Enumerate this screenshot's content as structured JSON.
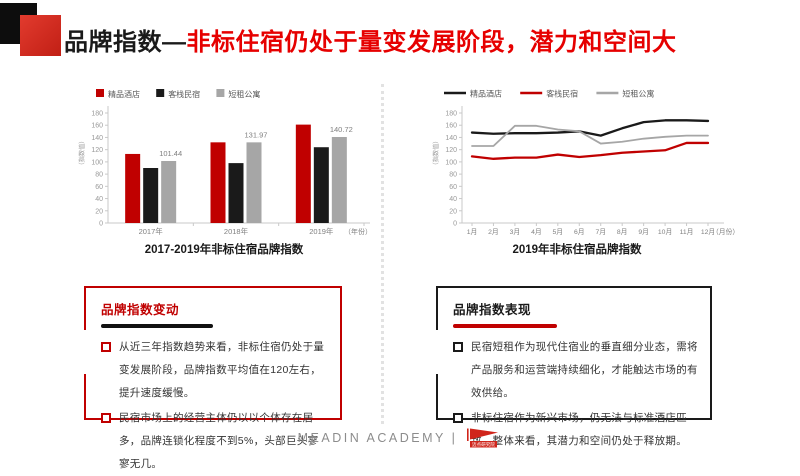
{
  "header": {
    "title_black": "品牌指数—",
    "title_red": "非标住宿仍处于量变发展阶段，潜力和空间大"
  },
  "colors": {
    "accent_red": "#c00000",
    "title_red": "#e60000",
    "series_black": "#1a1a1a",
    "series_gray": "#a6a6a6"
  },
  "chart_data": [
    {
      "type": "bar",
      "title": "2017-2019年非标住宿品牌指数",
      "ylabel": "（指数值）",
      "xlabel": "（年份）",
      "categories": [
        "2017年",
        "2018年",
        "2019年"
      ],
      "series": [
        {
          "name": "精品酒店",
          "color": "#c00000",
          "values": [
            113,
            132,
            161
          ]
        },
        {
          "name": "客栈民宿",
          "color": "#1a1a1a",
          "values": [
            90,
            98,
            124
          ]
        },
        {
          "name": "短租公寓",
          "color": "#a6a6a6",
          "values": [
            101.44,
            131.97,
            140.72
          ],
          "labels": [
            "101.44",
            "131.97",
            "140.72"
          ]
        }
      ],
      "ylim": [
        0,
        180
      ],
      "ytick_step": 20,
      "legend_position": "top",
      "grid": false
    },
    {
      "type": "line",
      "title": "2019年非标住宿品牌指数",
      "ylabel": "（指数值）",
      "xlabel": "（月份）",
      "categories": [
        "1月",
        "2月",
        "3月",
        "4月",
        "5月",
        "6月",
        "7月",
        "8月",
        "9月",
        "10月",
        "11月",
        "12月"
      ],
      "series": [
        {
          "name": "精品酒店",
          "color": "#1a1a1a",
          "values": [
            148,
            146,
            147,
            147,
            148,
            150,
            143,
            155,
            165,
            168,
            168,
            167
          ]
        },
        {
          "name": "客栈民宿",
          "color": "#c00000",
          "values": [
            109,
            105,
            107,
            107,
            112,
            108,
            111,
            115,
            117,
            119,
            131,
            131
          ]
        },
        {
          "name": "短租公寓",
          "color": "#a6a6a6",
          "values": [
            126,
            126,
            159,
            159,
            153,
            150,
            130,
            133,
            138,
            141,
            143,
            143
          ]
        }
      ],
      "ylim": [
        0,
        180
      ],
      "ytick_step": 20,
      "legend_position": "top",
      "grid": false
    }
  ],
  "boxes": {
    "left": {
      "title": "品牌指数变动",
      "bullets": [
        "从近三年指数趋势来看，非标住宿仍处于量变发展阶段，品牌指数平均值在120左右，提升速度缓慢。",
        "民宿市场上的经营主体仍以以个体存在居多，品牌连锁化程度不到5%，头部巨头寥寥无几。"
      ]
    },
    "right": {
      "title": "品牌指数表现",
      "bullets": [
        "民宿短租作为现代住宿业的垂直细分业态，需将产品服务和运营端持续细化，才能触达市场的有效供给。",
        "非标住宿作为新兴市场，仍无法与标准酒店匹敌。整体来看，其潜力和空间仍处于释放期。"
      ]
    }
  },
  "footer": {
    "brand": "MEADIN ACADEMY |",
    "logo_text": "迈点研究院"
  }
}
